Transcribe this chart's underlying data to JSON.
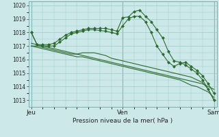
{
  "background_color": "#cce8e8",
  "grid_color": "#99cccc",
  "line_color": "#2d6a2d",
  "xlabel": "Pression niveau de la mer( hPa )",
  "ylim": [
    1012.5,
    1020.3
  ],
  "yticks": [
    1013,
    1014,
    1015,
    1016,
    1017,
    1018,
    1019,
    1020
  ],
  "xtick_labels": [
    "Jeu",
    "Ven",
    "Sam"
  ],
  "xtick_positions": [
    0,
    16,
    32
  ],
  "num_points": 33,
  "series": [
    [
      1018.0,
      1017.1,
      1017.1,
      1017.1,
      1017.2,
      1017.5,
      1017.8,
      1018.0,
      1018.1,
      1018.2,
      1018.3,
      1018.3,
      1018.3,
      1018.3,
      1018.2,
      1018.1,
      1019.1,
      1019.15,
      1019.55,
      1019.65,
      1019.2,
      1018.8,
      1018.2,
      1017.6,
      1016.6,
      1015.9,
      1015.8,
      1015.6,
      1015.3,
      1015.0,
      1014.5,
      1013.8,
      1013.0
    ],
    [
      1018.0,
      1017.1,
      1017.0,
      1017.0,
      1017.0,
      1017.3,
      1017.6,
      1017.9,
      1018.0,
      1018.1,
      1018.2,
      1018.2,
      1018.15,
      1018.1,
      1018.0,
      1017.9,
      1018.5,
      1019.0,
      1019.2,
      1019.2,
      1018.8,
      1018.0,
      1017.0,
      1016.4,
      1015.8,
      1015.5,
      1015.7,
      1015.8,
      1015.5,
      1015.2,
      1014.8,
      1014.2,
      1013.5
    ],
    [
      1017.0,
      1017.0,
      1016.9,
      1016.8,
      1016.7,
      1016.6,
      1016.5,
      1016.4,
      1016.4,
      1016.5,
      1016.5,
      1016.5,
      1016.4,
      1016.3,
      1016.1,
      1016.0,
      1015.9,
      1015.8,
      1015.7,
      1015.6,
      1015.5,
      1015.4,
      1015.3,
      1015.2,
      1015.1,
      1015.0,
      1014.9,
      1014.8,
      1014.7,
      1014.5,
      1014.3,
      1013.8,
      1013.0
    ],
    [
      1017.0,
      1016.9,
      1016.8,
      1016.7,
      1016.6,
      1016.5,
      1016.4,
      1016.3,
      1016.2,
      1016.2,
      1016.1,
      1016.0,
      1015.9,
      1015.8,
      1015.7,
      1015.6,
      1015.5,
      1015.4,
      1015.3,
      1015.2,
      1015.1,
      1015.0,
      1014.9,
      1014.8,
      1014.7,
      1014.6,
      1014.5,
      1014.3,
      1014.1,
      1014.0,
      1013.8,
      1013.6,
      1013.2
    ],
    [
      1017.2,
      1017.1,
      1017.0,
      1016.9,
      1016.8,
      1016.7,
      1016.6,
      1016.5,
      1016.4,
      1016.3,
      1016.2,
      1016.1,
      1016.0,
      1015.9,
      1015.8,
      1015.7,
      1015.6,
      1015.5,
      1015.4,
      1015.3,
      1015.2,
      1015.1,
      1015.0,
      1014.9,
      1014.8,
      1014.7,
      1014.6,
      1014.5,
      1014.4,
      1014.3,
      1014.2,
      1014.0,
      1013.8
    ]
  ],
  "marker_series": [
    0,
    1
  ],
  "marker": "D",
  "markersize": 2.0,
  "linewidth": 0.8,
  "ylabel_fontsize": 5.5,
  "xlabel_fontsize": 6.5,
  "xtick_fontsize": 6.5,
  "ytick_fontsize": 5.5
}
